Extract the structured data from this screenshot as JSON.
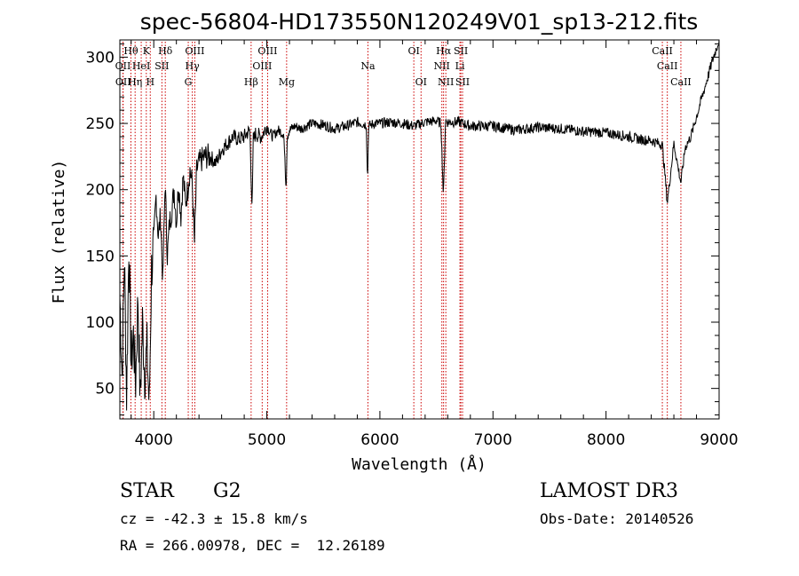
{
  "chart_data": {
    "type": "line",
    "title": "spec-56804-HD173550N120249V01_sp13-212.fits",
    "xlabel": "Wavelength (Å)",
    "ylabel": "Flux (relative)",
    "xlim": [
      3700,
      9000
    ],
    "ylim": [
      27,
      313
    ],
    "xticks": [
      4000,
      5000,
      6000,
      7000,
      8000,
      9000
    ],
    "yticks": [
      50,
      100,
      150,
      200,
      250,
      300
    ],
    "grid": false,
    "line_color": "#000000",
    "marker_color": "#cc0000",
    "spectrum": {
      "x": [
        3700,
        3720,
        3740,
        3760,
        3780,
        3800,
        3820,
        3840,
        3860,
        3880,
        3900,
        3920,
        3940,
        3960,
        3980,
        4000,
        4020,
        4040,
        4060,
        4080,
        4100,
        4120,
        4140,
        4160,
        4180,
        4200,
        4220,
        4240,
        4260,
        4280,
        4300,
        4320,
        4340,
        4360,
        4380,
        4400,
        4450,
        4500,
        4550,
        4600,
        4650,
        4700,
        4750,
        4800,
        4850,
        4870,
        4880,
        4900,
        4950,
        5000,
        5050,
        5100,
        5150,
        5170,
        5180,
        5200,
        5250,
        5300,
        5400,
        5500,
        5600,
        5700,
        5800,
        5880,
        5890,
        5900,
        5950,
        6000,
        6100,
        6200,
        6300,
        6400,
        6500,
        6540,
        6562,
        6580,
        6600,
        6700,
        6800,
        7000,
        7200,
        7400,
        7600,
        7800,
        8000,
        8200,
        8300,
        8400,
        8498,
        8542,
        8600,
        8662,
        8700,
        8750,
        8800,
        8850,
        8900,
        8950,
        9000
      ],
      "y": [
        120,
        60,
        150,
        45,
        160,
        70,
        90,
        55,
        120,
        40,
        100,
        60,
        80,
        35,
        140,
        160,
        195,
        165,
        180,
        130,
        205,
        150,
        175,
        185,
        200,
        175,
        205,
        180,
        210,
        190,
        200,
        215,
        205,
        160,
        215,
        220,
        225,
        225,
        220,
        230,
        235,
        240,
        238,
        240,
        245,
        185,
        238,
        242,
        240,
        248,
        240,
        245,
        242,
        200,
        240,
        245,
        248,
        246,
        250,
        249,
        246,
        248,
        251,
        249,
        205,
        248,
        250,
        250,
        251,
        250,
        248,
        251,
        252,
        250,
        195,
        252,
        251,
        251,
        248,
        248,
        245,
        247,
        246,
        244,
        243,
        240,
        238,
        237,
        234,
        190,
        235,
        205,
        232,
        240,
        255,
        270,
        285,
        300,
        313
      ]
    },
    "lines": [
      {
        "label": "Hθ",
        "x": 3798,
        "row": 1
      },
      {
        "label": "OII",
        "x": 3727,
        "row": 2
      },
      {
        "label": "OII",
        "x": 3729,
        "row": 3
      },
      {
        "label": "Hη",
        "x": 3835,
        "row": 3
      },
      {
        "label": "HeI",
        "x": 3889,
        "row": 2
      },
      {
        "label": "K",
        "x": 3934,
        "row": 1
      },
      {
        "label": "H",
        "x": 3969,
        "row": 3
      },
      {
        "label": "SII",
        "x": 4072,
        "row": 2
      },
      {
        "label": "Hδ",
        "x": 4102,
        "row": 1
      },
      {
        "label": "G",
        "x": 4305,
        "row": 3
      },
      {
        "label": "Hγ",
        "x": 4341,
        "row": 2
      },
      {
        "label": "OIII",
        "x": 4363,
        "row": 1
      },
      {
        "label": "Hβ",
        "x": 4861,
        "row": 3
      },
      {
        "label": "OIII",
        "x": 4959,
        "row": 2
      },
      {
        "label": "OIII",
        "x": 5007,
        "row": 1
      },
      {
        "label": "Mg",
        "x": 5175,
        "row": 3
      },
      {
        "label": "Na",
        "x": 5894,
        "row": 2
      },
      {
        "label": "OI",
        "x": 6300,
        "row": 1
      },
      {
        "label": "OI",
        "x": 6364,
        "row": 3
      },
      {
        "label": "NII",
        "x": 6548,
        "row": 2
      },
      {
        "label": "Hα",
        "x": 6563,
        "row": 1
      },
      {
        "label": "NII",
        "x": 6583,
        "row": 3
      },
      {
        "label": "Li",
        "x": 6708,
        "row": 2
      },
      {
        "label": "SII",
        "x": 6716,
        "row": 1
      },
      {
        "label": "SII",
        "x": 6731,
        "row": 3
      },
      {
        "label": "CaII",
        "x": 8498,
        "row": 1
      },
      {
        "label": "CaII",
        "x": 8542,
        "row": 2
      },
      {
        "label": "CaII",
        "x": 8662,
        "row": 3
      }
    ]
  },
  "info": {
    "class_label": "STAR",
    "subclass": "G2",
    "survey": "LAMOST DR3",
    "redshift": "cz = -42.3 ± 15.8 km/s",
    "obs_date": "Obs-Date: 20140526",
    "coords": "RA = 266.00978, DEC =  12.26189"
  }
}
